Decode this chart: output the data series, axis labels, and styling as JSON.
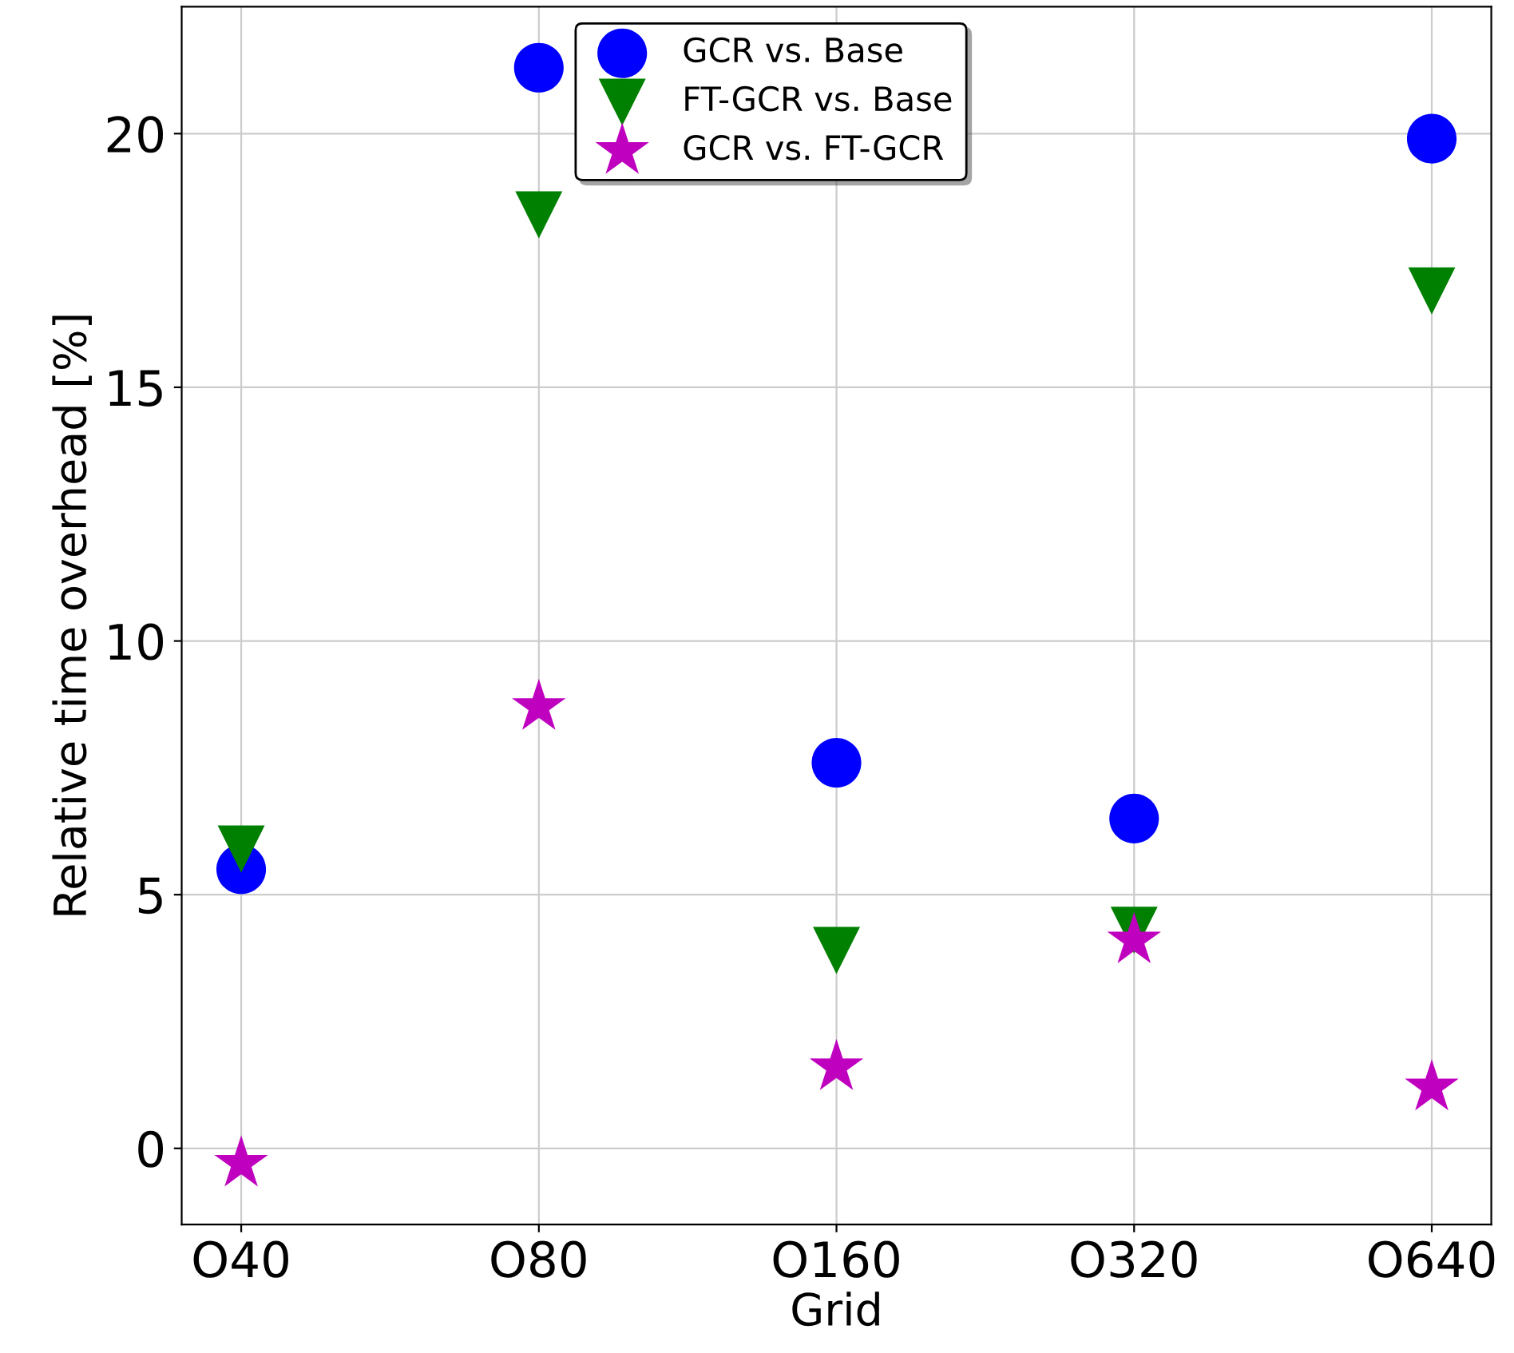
{
  "chart_data": {
    "type": "scatter",
    "xlabel": "Grid",
    "ylabel": "Relative time overhead [%]",
    "categories": [
      "O40",
      "O80",
      "O160",
      "O320",
      "O640"
    ],
    "series": [
      {
        "name": "GCR vs. Base",
        "color": "#0000ff",
        "marker": "circle",
        "values": [
          5.5,
          21.3,
          7.6,
          6.5,
          19.9
        ]
      },
      {
        "name": "FT-GCR vs. Base",
        "color": "#008000",
        "marker": "triangle",
        "values": [
          5.9,
          18.4,
          3.9,
          4.3,
          16.9
        ]
      },
      {
        "name": "GCR vs. FT-GCR",
        "color": "#bf00bf",
        "marker": "star",
        "values": [
          -0.3,
          8.7,
          1.6,
          4.1,
          1.2
        ]
      }
    ],
    "ylim": [
      -1.5,
      22.5
    ],
    "yticks": [
      0,
      5,
      10,
      15,
      20
    ],
    "grid": true,
    "legend": "top"
  }
}
